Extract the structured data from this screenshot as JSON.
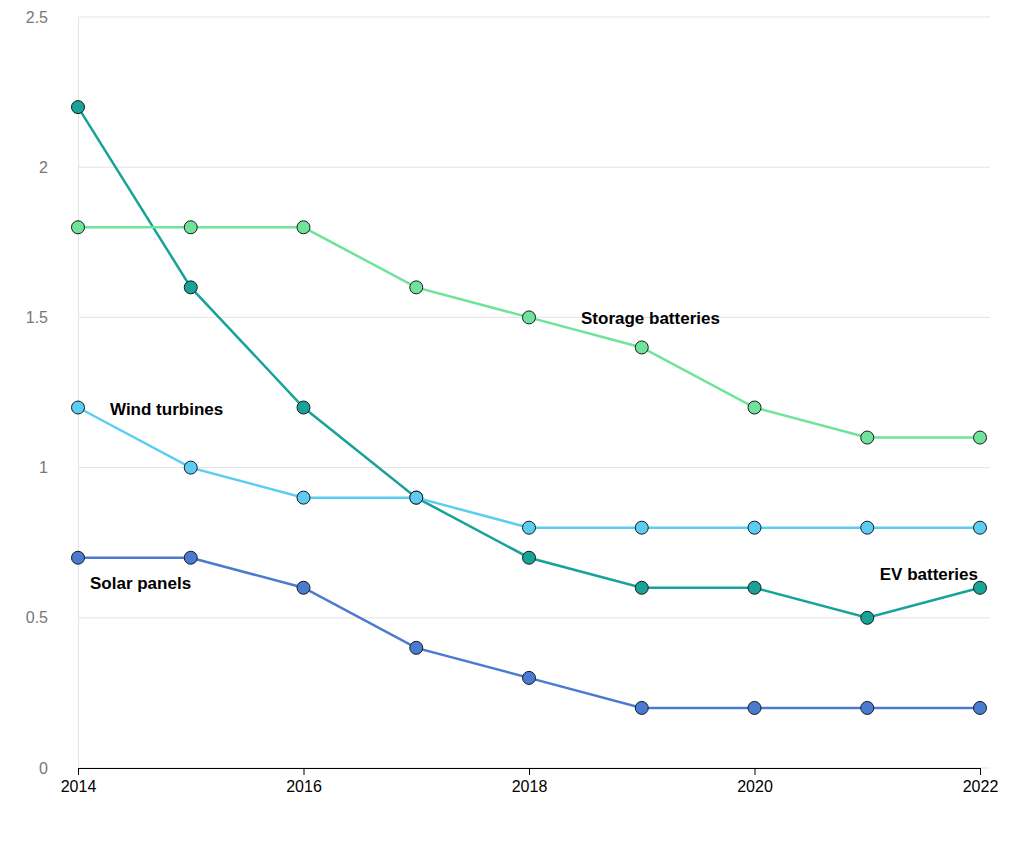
{
  "chart_data": {
    "type": "line",
    "x": [
      2014,
      2015,
      2016,
      2017,
      2018,
      2019,
      2020,
      2021,
      2022
    ],
    "series": [
      {
        "name": "EV batteries",
        "color": "#17a398",
        "marker": "circle",
        "values": [
          2.2,
          1.6,
          1.2,
          0.9,
          0.7,
          0.6,
          0.6,
          0.5,
          0.6
        ]
      },
      {
        "name": "Storage batteries",
        "color": "#6fe39a",
        "marker": "circle",
        "values": [
          1.8,
          1.8,
          1.8,
          1.6,
          1.5,
          1.4,
          1.2,
          1.1,
          1.1
        ]
      },
      {
        "name": "Wind turbines",
        "color": "#5ccdf2",
        "marker": "circle",
        "values": [
          1.2,
          1.0,
          0.9,
          0.9,
          0.8,
          0.8,
          0.8,
          0.8,
          0.8
        ]
      },
      {
        "name": "Solar panels",
        "color": "#4a7bd0",
        "marker": "circle",
        "values": [
          0.7,
          0.7,
          0.6,
          0.4,
          0.3,
          0.2,
          0.2,
          0.2,
          0.2
        ]
      }
    ],
    "xlim": [
      2014,
      2022
    ],
    "xticks": [
      2014,
      2016,
      2018,
      2020,
      2022
    ],
    "ylim": [
      0,
      2.5
    ],
    "yticks": [
      0,
      0.5,
      1,
      1.5,
      2,
      2.5
    ],
    "grid": true
  }
}
